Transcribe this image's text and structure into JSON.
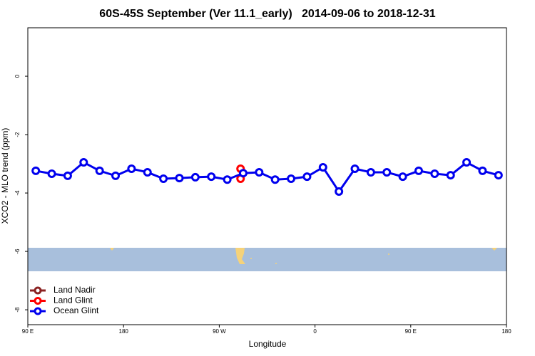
{
  "chart_data": {
    "type": "line",
    "title": "60S-45S September (Ver 11.1_early)   2014-09-06 to 2018-12-31",
    "xlabel": "Longitude",
    "ylabel": "XCO2 - MLO trend (ppm)",
    "xlim": [
      90,
      540
    ],
    "ylim": [
      -8.51,
      1.66
    ],
    "xticks": [
      {
        "value": 90,
        "label": "90 E"
      },
      180,
      {
        "value": 270,
        "label": "90 W"
      },
      {
        "value": 360,
        "label": "0"
      },
      {
        "value": 450,
        "label": "90 E"
      },
      {
        "value": 540,
        "label": "180"
      }
    ],
    "yticks": [
      0,
      -2,
      -4,
      -6,
      -8
    ],
    "legend": "bottomleft",
    "series": [
      {
        "name": "Land Nadir",
        "color": "#8b2323",
        "x": [],
        "values": []
      },
      {
        "name": "Land Glint",
        "color": "#ff0000",
        "x": [
          290,
          290
        ],
        "values": [
          -3.17,
          -3.51
        ]
      },
      {
        "name": "Ocean Glint",
        "color": "#0000ee",
        "x": [
          97.5,
          112.5,
          127.5,
          142.5,
          157.5,
          172.5,
          187.5,
          202.5,
          217.5,
          232.5,
          247.5,
          262.5,
          277.5,
          292.5,
          307.5,
          322.5,
          337.5,
          352.5,
          367.5,
          382.5,
          397.5,
          412.5,
          427.5,
          442.5,
          457.5,
          472.5,
          487.5,
          502.5,
          517.5,
          532.5
        ],
        "values": [
          -3.24,
          -3.34,
          -3.41,
          -2.95,
          -3.24,
          -3.41,
          -3.17,
          -3.29,
          -3.51,
          -3.49,
          -3.46,
          -3.44,
          -3.54,
          -3.32,
          -3.29,
          -3.54,
          -3.51,
          -3.44,
          -3.12,
          -3.95,
          -3.17,
          -3.29,
          -3.29,
          -3.44,
          -3.24,
          -3.34,
          -3.39,
          -2.95,
          -3.24,
          -3.39
        ]
      }
    ]
  }
}
